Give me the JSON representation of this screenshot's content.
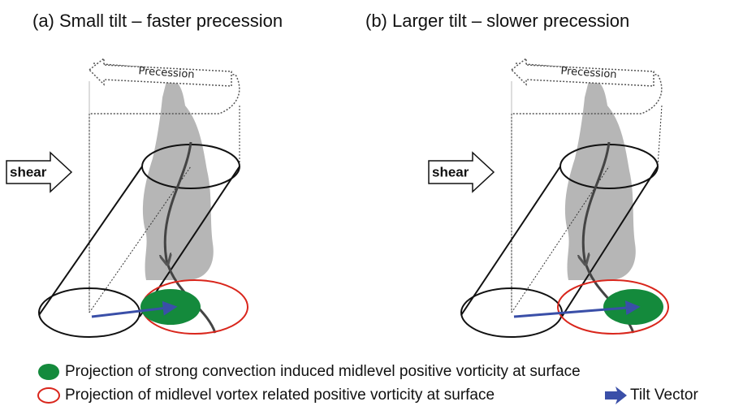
{
  "panels": [
    {
      "title": "(a) Small tilt – faster precession",
      "precession_label": "Precession",
      "shear_label": "shear"
    },
    {
      "title": "(b) Larger tilt – slower precession",
      "precession_label": "Precession",
      "shear_label": "shear"
    }
  ],
  "legend": {
    "items": [
      {
        "label": "Projection of strong convection induced midlevel positive vorticity at surface"
      },
      {
        "label": "Projection of midlevel vortex related positive vorticity at surface"
      },
      {
        "label": "Tilt Vector"
      }
    ]
  }
}
